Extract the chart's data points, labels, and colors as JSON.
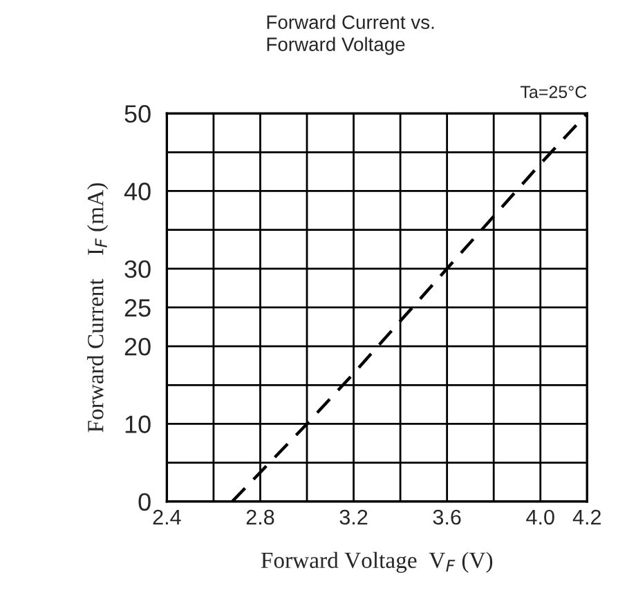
{
  "chart_data": {
    "type": "line",
    "title": "Forward Current vs.\nForward Voltage",
    "annotations": [
      "Ta=25°C"
    ],
    "xlabel": "Forward Voltage  V$_{F}$ (V)",
    "ylabel": "Forward Current    I$_{F}$ (mA)",
    "x": [
      2.68,
      3.0,
      3.2,
      3.6,
      4.0,
      4.2
    ],
    "series": [
      {
        "color": "#000000",
        "values": [
          0,
          10,
          16.5,
          30,
          43.5,
          50
        ]
      }
    ],
    "xlim": [
      2.4,
      4.2
    ],
    "xticks": [
      2.4,
      {
        "value": 2.6,
        "label": null
      },
      2.8,
      {
        "value": 3.0,
        "label": null
      },
      3.2,
      {
        "value": 3.4,
        "label": null
      },
      3.6,
      {
        "value": 3.8,
        "label": null
      },
      {
        "value": 4.0,
        "label": "4.0"
      },
      4.2
    ],
    "ylim": [
      0,
      50
    ],
    "yticks": [
      0,
      {
        "value": 5,
        "label": null
      },
      10,
      {
        "value": 15,
        "label": null
      },
      20,
      25,
      30,
      {
        "value": 35,
        "label": null
      },
      40,
      {
        "value": 45,
        "label": null
      },
      50
    ],
    "grid": true,
    "line_style": "dashed",
    "marker": "none",
    "legend": false
  }
}
